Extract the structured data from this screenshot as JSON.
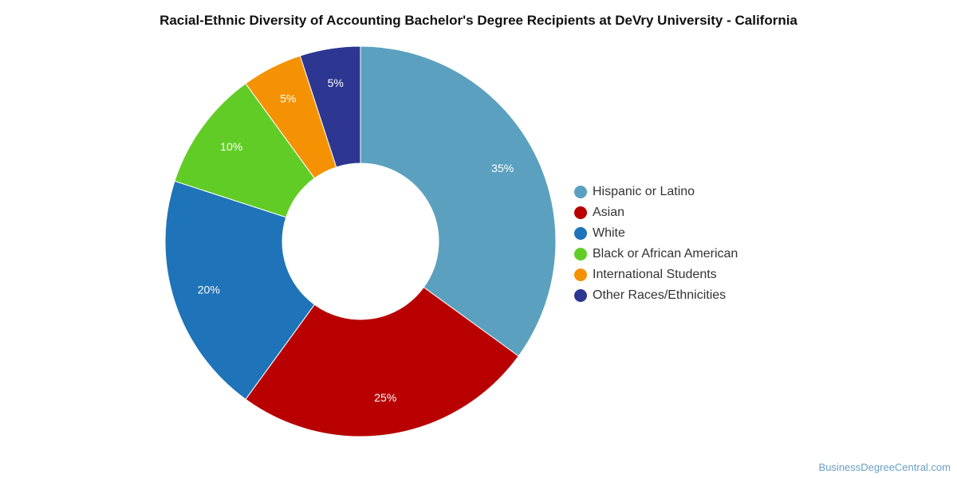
{
  "chart_data": {
    "type": "pie",
    "title": "Racial-Ethnic Diversity of Accounting Bachelor's Degree Recipients at DeVry University - California",
    "categories": [
      "Hispanic or Latino",
      "Asian",
      "White",
      "Black or African American",
      "International Students",
      "Other Races/Ethnicities"
    ],
    "values": [
      35,
      25,
      20,
      10,
      5,
      5
    ],
    "labels": [
      "35%",
      "25%",
      "20%",
      "10%",
      "5%",
      "5%"
    ],
    "colors": [
      "#5ba1bf",
      "#b80000",
      "#1f73b8",
      "#61cc26",
      "#f59203",
      "#2d3791"
    ],
    "donut": true,
    "legend_position": "right"
  },
  "watermark": "BusinessDegreeCentral.com"
}
